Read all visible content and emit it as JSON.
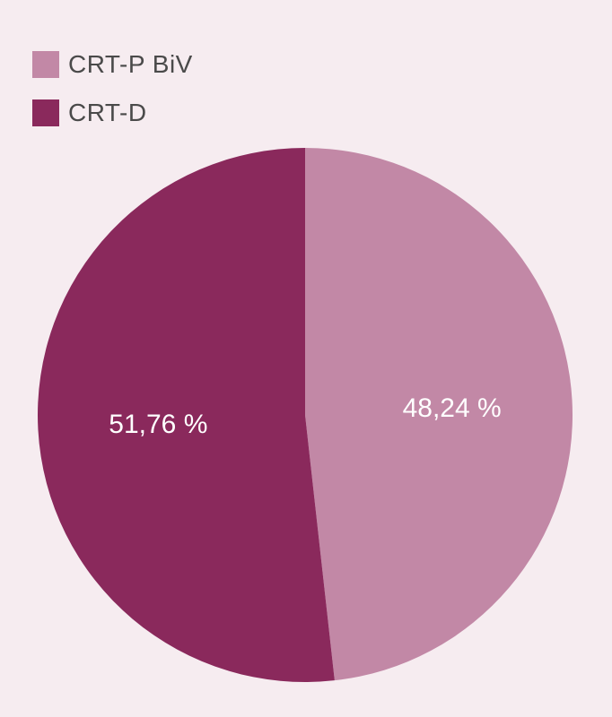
{
  "chart_data": {
    "type": "pie",
    "title": "",
    "legend_position": "top-left",
    "slices": [
      {
        "label": "CRT-P BiV",
        "value": 48.24,
        "display": "48,24 %",
        "color": "#c288a6"
      },
      {
        "label": "CRT-D",
        "value": 51.76,
        "display": "51,76 %",
        "color": "#8a295c"
      }
    ]
  }
}
